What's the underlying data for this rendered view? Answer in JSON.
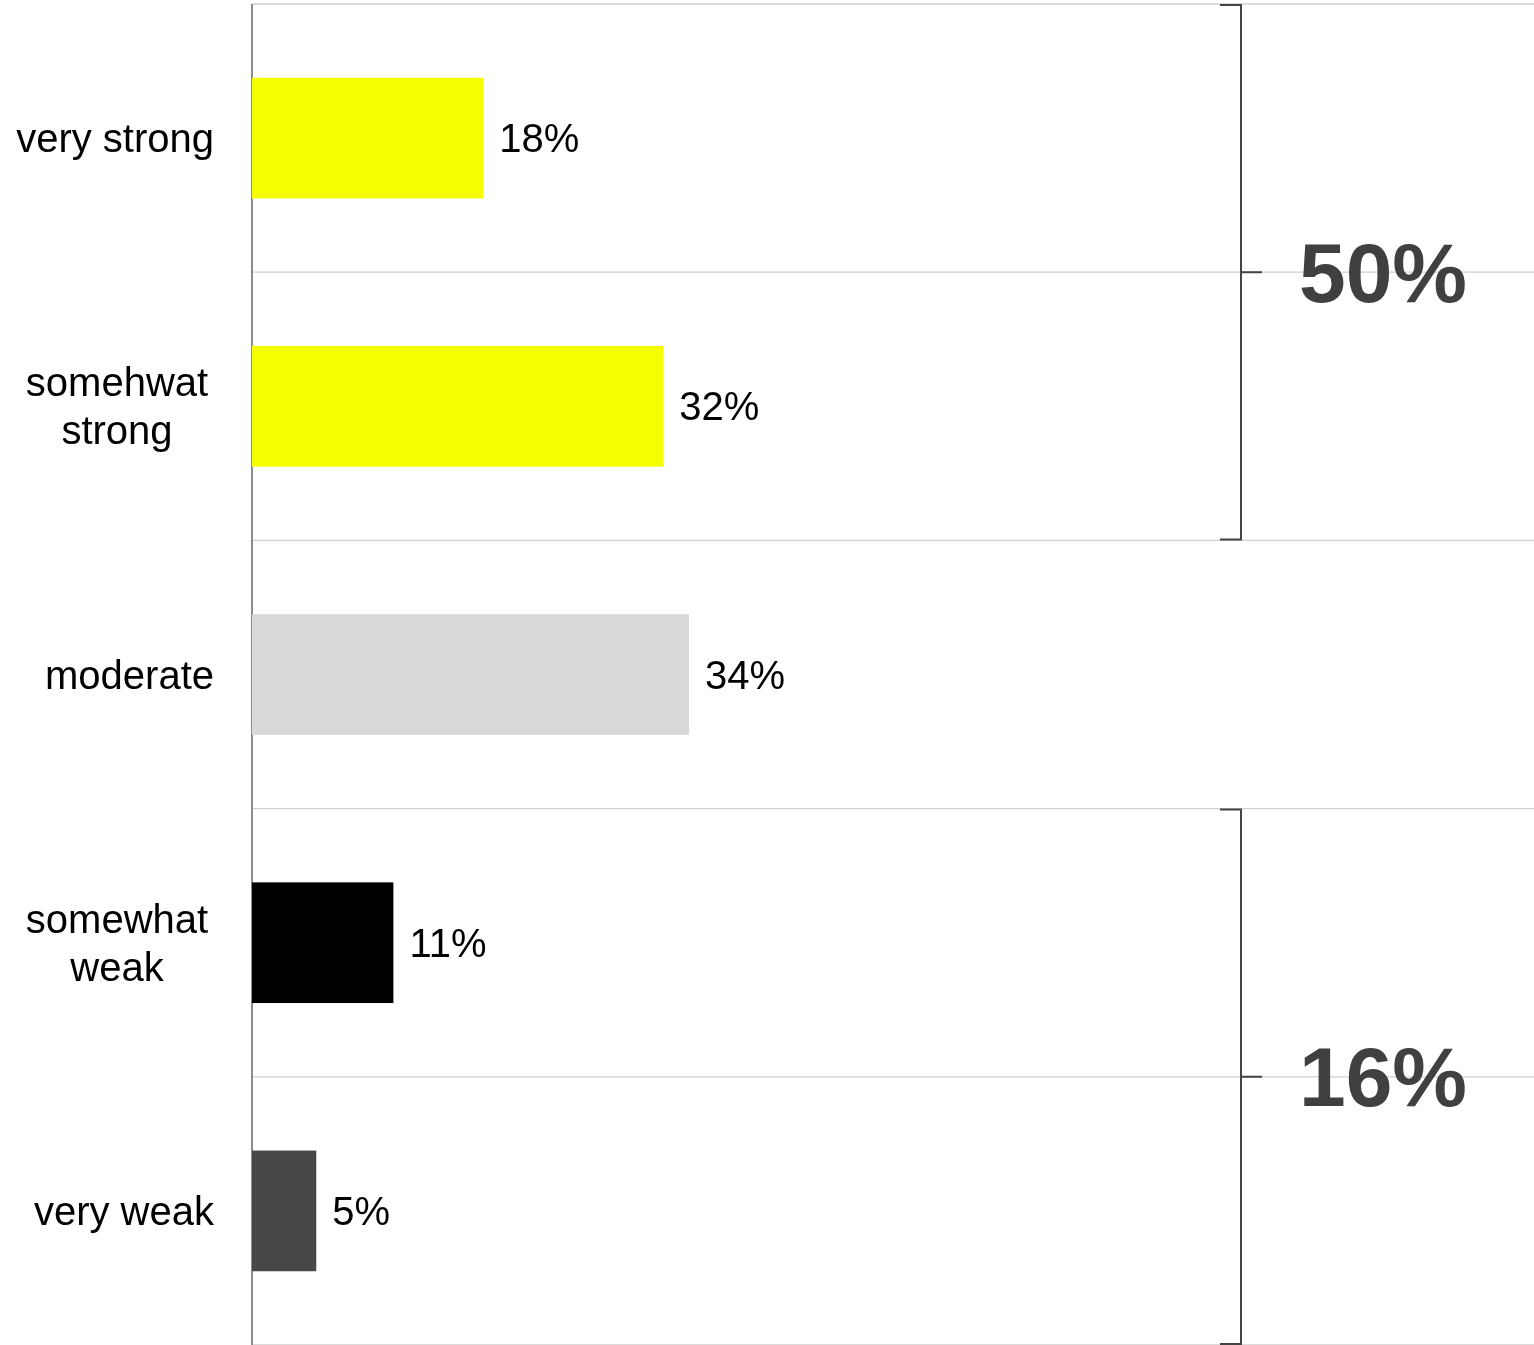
{
  "chart_data": {
    "type": "bar",
    "orientation": "horizontal",
    "categories": [
      "very strong",
      "somehwat strong",
      "moderate",
      "somewhat weak",
      "very weak"
    ],
    "values": [
      18,
      32,
      34,
      11,
      5
    ],
    "colors": [
      "#f5ff00",
      "#f5ff00",
      "#d9d9d9",
      "#000000",
      "#474747"
    ],
    "value_labels": [
      "18%",
      "32%",
      "34%",
      "11%",
      "5%"
    ],
    "grid": "y",
    "tick_labels": "y",
    "annotations": [
      "50%",
      "16%"
    ]
  }
}
